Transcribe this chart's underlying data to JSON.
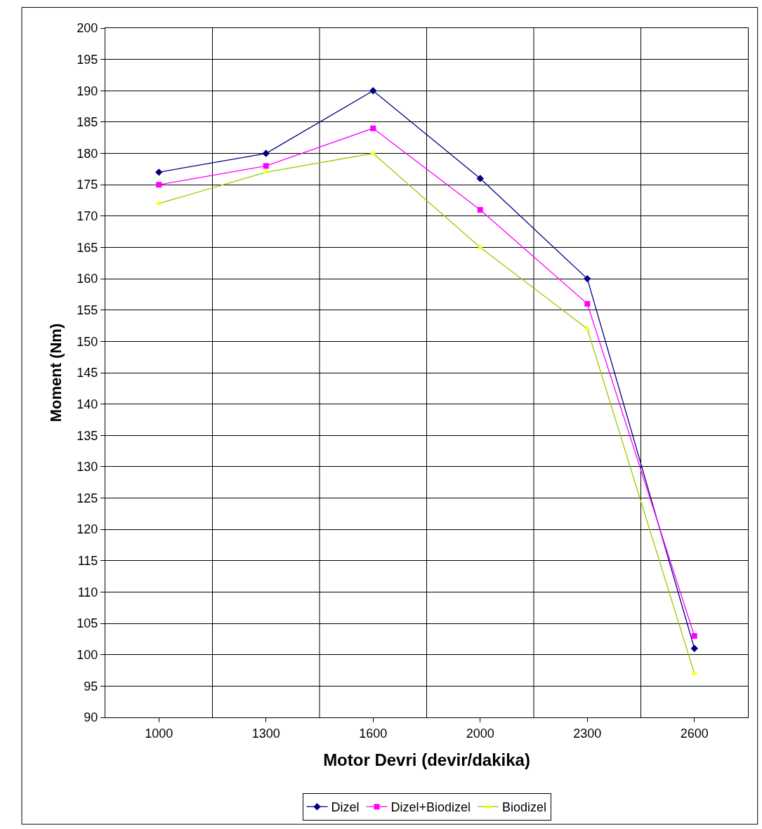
{
  "chart_data": {
    "type": "line",
    "xlabel": "Motor Devri (devir/dakika)",
    "ylabel": "Moment (Nm)",
    "categories": [
      "1000",
      "1300",
      "1600",
      "2000",
      "2300",
      "2600"
    ],
    "series": [
      {
        "name": "Dizel",
        "color": "#000080",
        "marker": "diamond",
        "values": [
          177,
          180,
          190,
          176,
          160,
          101
        ]
      },
      {
        "name": "Dizel+Biodizel",
        "color": "#ff00ff",
        "marker": "square",
        "values": [
          175,
          178,
          184,
          171,
          156,
          103
        ]
      },
      {
        "name": "Biodizel",
        "color": "#99cc00",
        "colors": [
          "#ffff00",
          "#ffff00",
          "#ffff00",
          "#ffff00",
          "#ffff00",
          "#ffff00"
        ],
        "marker": "triangle",
        "values": [
          172,
          177,
          180,
          165,
          152,
          97
        ]
      }
    ],
    "ylim": [
      90,
      200
    ],
    "yticks": [
      90,
      95,
      100,
      105,
      110,
      115,
      120,
      125,
      130,
      135,
      140,
      145,
      150,
      155,
      160,
      165,
      170,
      175,
      180,
      185,
      190,
      195,
      200
    ],
    "grid": true,
    "legend": "bottom",
    "line_style": "solid"
  }
}
